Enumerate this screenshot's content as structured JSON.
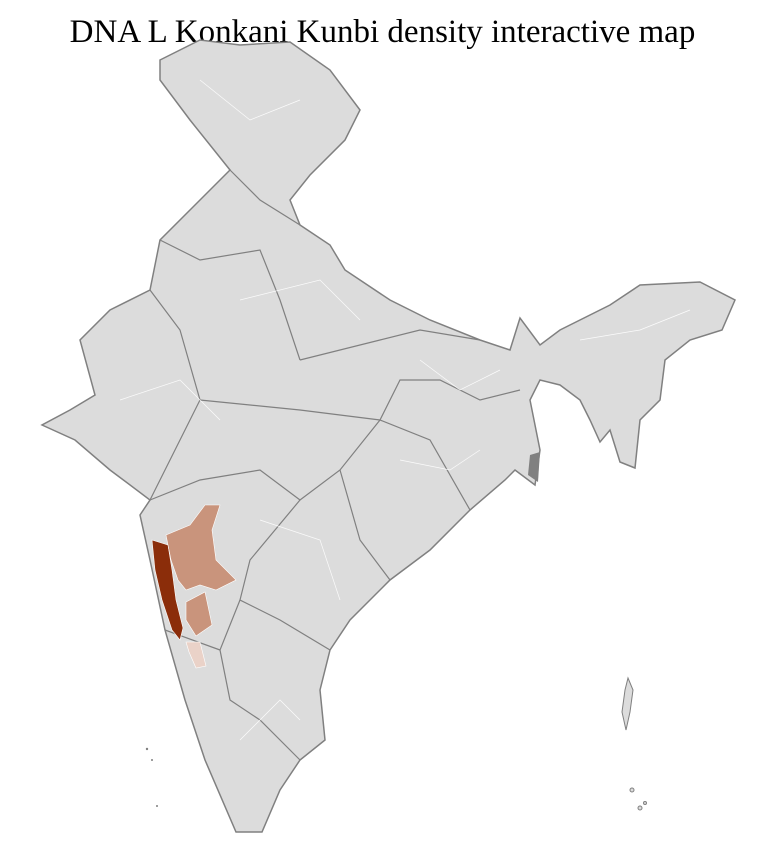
{
  "title": "DNA L Konkani Kunbi density interactive map",
  "colors": {
    "base_fill": "#dcdcdc",
    "state_border": "#808080",
    "district_border": "#ffffff",
    "density_high": "#8b2d0a",
    "density_medium": "#c9947c",
    "density_low": "#ead2c8"
  },
  "highlighted_regions": [
    {
      "density": "high"
    },
    {
      "density": "medium"
    },
    {
      "density": "medium"
    },
    {
      "density": "low"
    }
  ]
}
